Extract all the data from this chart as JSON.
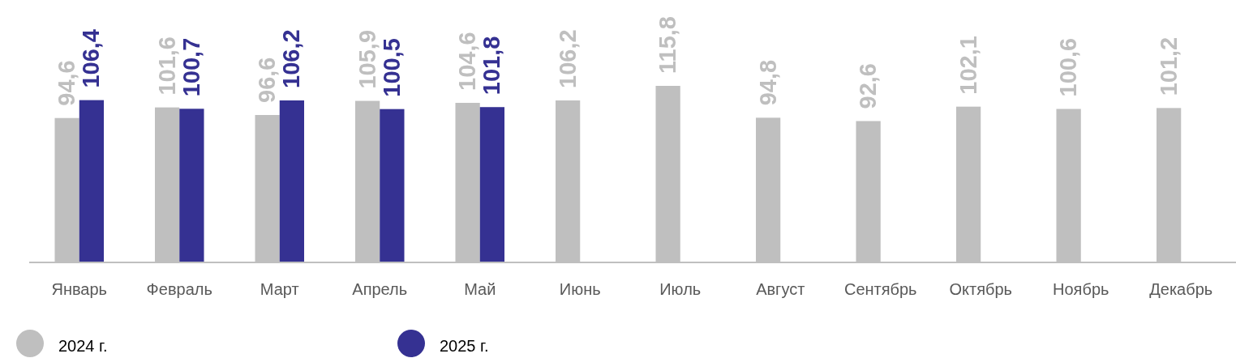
{
  "chart_data": {
    "type": "bar",
    "categories": [
      "Январь",
      "Февраль",
      "Март",
      "Апрель",
      "Май",
      "Июнь",
      "Июль",
      "Август",
      "Сентябрь",
      "Октябрь",
      "Ноябрь",
      "Декабрь"
    ],
    "series": [
      {
        "name": "2024 г.",
        "color": "#bfbfbf",
        "values": [
          94.6,
          101.6,
          96.6,
          105.9,
          104.6,
          106.2,
          115.8,
          94.8,
          92.6,
          102.1,
          100.6,
          101.2
        ],
        "value_labels": [
          "94,6",
          "101,6",
          "96,6",
          "105,9",
          "104,6",
          "106,2",
          "115,8",
          "94,8",
          "92,6",
          "102,1",
          "100,6",
          "101,2"
        ]
      },
      {
        "name": "2025 г.",
        "color": "#353192",
        "values": [
          106.4,
          100.7,
          106.2,
          100.5,
          101.8,
          null,
          null,
          null,
          null,
          null,
          null,
          null
        ],
        "value_labels": [
          "106,4",
          "100,7",
          "106,2",
          "100,5",
          "101,8",
          null,
          null,
          null,
          null,
          null,
          null,
          null
        ]
      }
    ],
    "legend": "bottom",
    "tick_labels": "x"
  }
}
